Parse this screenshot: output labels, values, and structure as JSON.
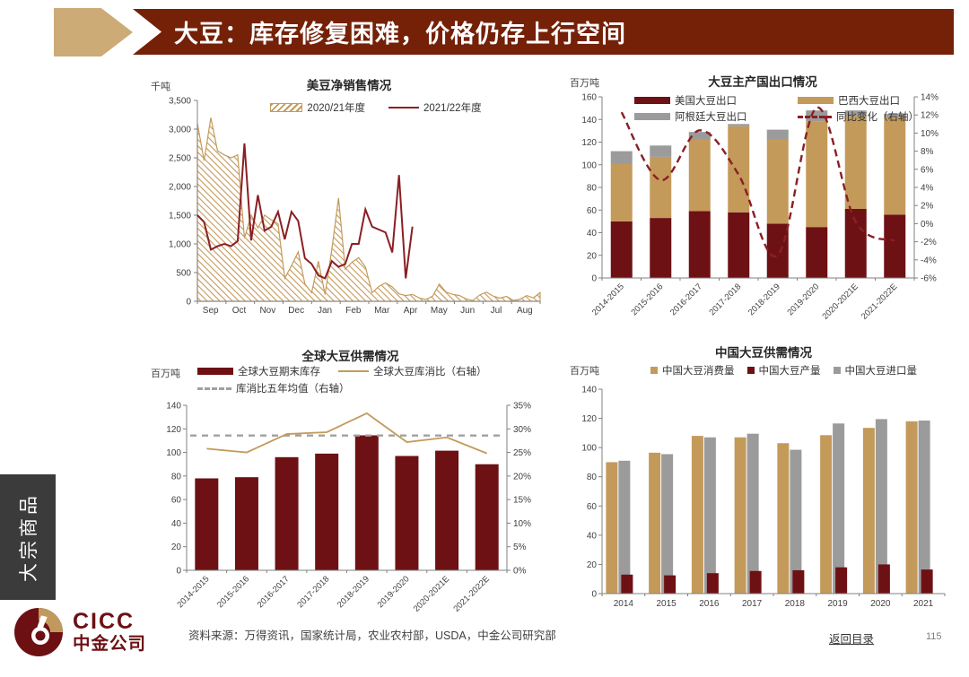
{
  "page": {
    "title": "大豆：库存修复困难，价格仍存上行空间"
  },
  "sidebar": {
    "label": "大宗商品"
  },
  "footer": {
    "source": "资料来源：万得资讯，国家统计局，农业农村部，USDA，中金公司研究部",
    "back_link": "返回目录",
    "page_number": "115",
    "logo_text_en": "CICC",
    "logo_text_cn": "中金公司"
  },
  "colors": {
    "banner": "#742108",
    "arrow_tan": "#ccab77",
    "maroon": "#6e1114",
    "red_line": "#8a1f24",
    "tan": "#c49a5b",
    "gray": "#9b9b9b",
    "avg_gray": "#a0a0a0",
    "sidebar_bg": "#3b3b3b",
    "logo_maroon": "#6d1013"
  },
  "chart_data": [
    {
      "kind": "us-sales",
      "type": "line",
      "title": "美豆净销售情况",
      "unit_label": "千吨",
      "x_month_labels": [
        "Sep",
        "Oct",
        "Nov",
        "Dec",
        "Jan",
        "Feb",
        "Mar",
        "Apr",
        "May",
        "Jun",
        "Jul",
        "Aug"
      ],
      "ylim": [
        0,
        3500
      ],
      "ytick_step": 500,
      "series": [
        {
          "name": "2020/21年度",
          "style": "hatched-area",
          "color": "#c49a5b",
          "values": [
            3100,
            2450,
            3200,
            2620,
            2550,
            2500,
            2550,
            1100,
            1500,
            1280,
            1500,
            1420,
            1350,
            400,
            620,
            860,
            300,
            150,
            700,
            120,
            900,
            1800,
            560,
            680,
            760,
            600,
            150,
            260,
            320,
            250,
            130,
            100,
            120,
            60,
            30,
            90,
            300,
            160,
            120,
            100,
            40,
            15,
            110,
            160,
            90,
            55,
            85,
            15,
            35,
            100,
            60,
            150
          ]
        },
        {
          "name": "2021/22年度",
          "style": "line",
          "color": "#8a1f24",
          "values": [
            1500,
            1380,
            900,
            960,
            1000,
            960,
            1050,
            2750,
            1060,
            1850,
            1230,
            1300,
            1560,
            1080,
            1560,
            1400,
            750,
            650,
            450,
            400,
            700,
            600,
            650,
            1000,
            1000,
            1600,
            1300,
            1250,
            1200,
            850,
            2200,
            400,
            1300
          ]
        }
      ],
      "legend": [
        {
          "label": "2020/21年度",
          "marker": "hatch",
          "color": "#c49a5b",
          "row": 0
        },
        {
          "label": "2021/22年度",
          "marker": "line",
          "color": "#8a1f24",
          "row": 0
        }
      ]
    },
    {
      "kind": "exports",
      "type": "bar",
      "title": "大豆主产国出口情况",
      "unit_label": "百万吨",
      "categories": [
        "2014-2015",
        "2015-2016",
        "2016-2017",
        "2017-2018",
        "2018-2019",
        "2019-2020",
        "2020-2021E",
        "2021-2022E"
      ],
      "left_axis": {
        "min": 0,
        "max": 160,
        "step": 20
      },
      "right_axis": {
        "min": -6,
        "max": 14,
        "step": 2,
        "suffix": "%"
      },
      "series": [
        {
          "name": "美国大豆出口",
          "type": "bar",
          "color": "#6e1114",
          "values": [
            50,
            53,
            59,
            58,
            48,
            45,
            61,
            56
          ]
        },
        {
          "name": "巴西大豆出口",
          "type": "bar",
          "color": "#c49a5b",
          "values": [
            51,
            54,
            63,
            76,
            74,
            93,
            82,
            86
          ]
        },
        {
          "name": "阿根廷大豆出口",
          "type": "bar",
          "color": "#9b9b9b",
          "values": [
            11,
            10,
            7,
            2,
            9,
            10,
            5,
            3
          ]
        },
        {
          "name": "同比变化（右轴）",
          "type": "dashed-line",
          "axis": "right",
          "color": "#8a1f24",
          "values": [
            12.3,
            4.8,
            10.3,
            5.4,
            -3.5,
            12.8,
            0.2,
            -1.9
          ]
        }
      ],
      "legend": [
        {
          "label": "美国大豆出口",
          "marker": "bar",
          "color": "#6e1114",
          "row": 0
        },
        {
          "label": "巴西大豆出口",
          "marker": "bar",
          "color": "#c49a5b",
          "row": 0
        },
        {
          "label": "阿根廷大豆出口",
          "marker": "bar",
          "color": "#9b9b9b",
          "row": 1
        },
        {
          "label": "同比变化（右轴）",
          "marker": "dash",
          "color": "#8a1f24",
          "row": 1
        }
      ]
    },
    {
      "kind": "global",
      "type": "bar",
      "title": "全球大豆供需情况",
      "unit_label": "百万吨",
      "categories": [
        "2014-2015",
        "2015-2016",
        "2016-2017",
        "2017-2018",
        "2018-2019",
        "2019-2020",
        "2020-2021E",
        "2021-2022E"
      ],
      "left_axis": {
        "min": 0,
        "max": 140,
        "step": 20
      },
      "right_axis": {
        "min": 0,
        "max": 35,
        "step": 5,
        "suffix": "%"
      },
      "series": [
        {
          "name": "全球大豆期末库存",
          "type": "bar",
          "color": "#6e1114",
          "values": [
            78,
            79,
            96,
            99,
            114.5,
            97,
            101.5,
            90
          ]
        },
        {
          "name": "全球大豆库消比（右轴）",
          "type": "line",
          "axis": "right",
          "color": "#c49a5b",
          "values": [
            25.8,
            25.0,
            28.9,
            29.3,
            33.3,
            27.2,
            28.2,
            24.8
          ]
        },
        {
          "name": "库消比五年均值（右轴）",
          "type": "dashed-hline",
          "axis": "right",
          "color": "#a0a0a0",
          "value": 28.6
        }
      ],
      "legend": [
        {
          "label": "全球大豆期末库存",
          "marker": "bar",
          "color": "#6e1114",
          "row": 0
        },
        {
          "label": "全球大豆库消比（右轴）",
          "marker": "line",
          "color": "#c49a5b",
          "row": 0
        },
        {
          "label": "库消比五年均值（右轴）",
          "marker": "dash",
          "color": "#a0a0a0",
          "row": 1
        }
      ]
    },
    {
      "kind": "china",
      "type": "bar",
      "title": "中国大豆供需情况",
      "unit_label": "百万吨",
      "categories": [
        "2014",
        "2015",
        "2016",
        "2017",
        "2018",
        "2019",
        "2020",
        "2021"
      ],
      "left_axis": {
        "min": 0,
        "max": 140,
        "step": 20
      },
      "series": [
        {
          "name": "中国大豆消费量",
          "type": "bar",
          "color": "#c49a5b",
          "values": [
            90,
            96.5,
            108,
            107,
            103,
            108.5,
            113.5,
            118
          ]
        },
        {
          "name": "中国大豆产量",
          "type": "bar",
          "color": "#6e1114",
          "values": [
            13,
            12.5,
            14,
            15.5,
            16,
            18,
            20,
            16.5
          ]
        },
        {
          "name": "中国大豆进口量",
          "type": "bar",
          "color": "#9b9b9b",
          "values": [
            91,
            95.5,
            107,
            109.5,
            98.5,
            116.5,
            119.5,
            118.5
          ]
        }
      ],
      "legend": [
        {
          "label": "中国大豆消费量",
          "marker": "sq",
          "color": "#c49a5b",
          "row": 0
        },
        {
          "label": "中国大豆产量",
          "marker": "sq",
          "color": "#6e1114",
          "row": 0
        },
        {
          "label": "中国大豆进口量",
          "marker": "sq",
          "color": "#9b9b9b",
          "row": 0
        }
      ]
    }
  ]
}
